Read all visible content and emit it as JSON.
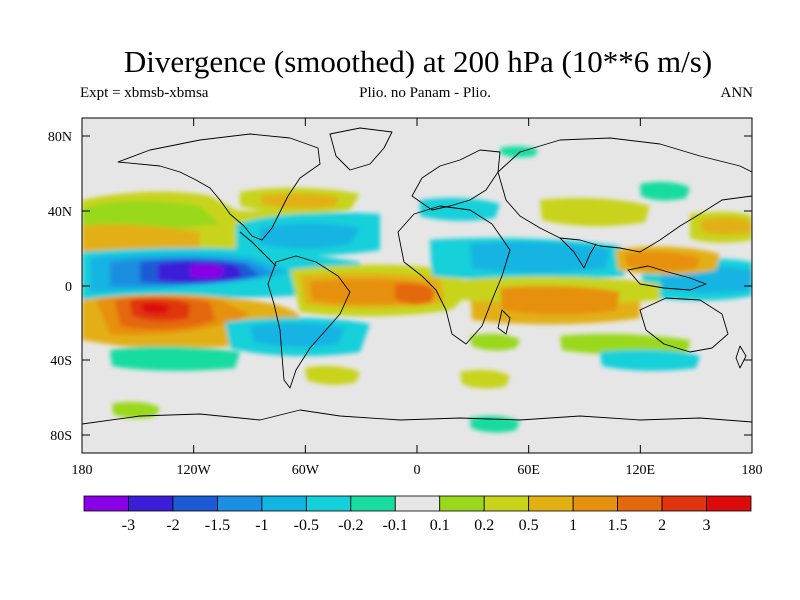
{
  "title": "Divergence (smoothed) at 200 hPa (10**6 m/s)",
  "subtitle_left": "Expt = xbmsb-xbmsa",
  "subtitle_center": "Plio. no Panam - Plio.",
  "subtitle_right": "ANN",
  "lat_ticks": [
    "80N",
    "40N",
    "0",
    "40S",
    "80S"
  ],
  "lon_ticks": [
    "180",
    "120W",
    "60W",
    "0",
    "60E",
    "120E",
    "180"
  ],
  "colorbar": {
    "colors": [
      "#8a00e6",
      "#3c1ed8",
      "#1c5ad6",
      "#1a8ee0",
      "#12b4e2",
      "#14d0da",
      "#18dca0",
      "#e6e6e6",
      "#9ad81e",
      "#c8d41a",
      "#e2b012",
      "#e69010",
      "#e4680e",
      "#e0340e",
      "#dc0a0a"
    ],
    "labels": [
      "-3",
      "-2",
      "-1.5",
      "-1",
      "-0.5",
      "-0.2",
      "-0.1",
      "0.1",
      "0.2",
      "0.5",
      "1",
      "1.5",
      "2",
      "3"
    ]
  }
}
